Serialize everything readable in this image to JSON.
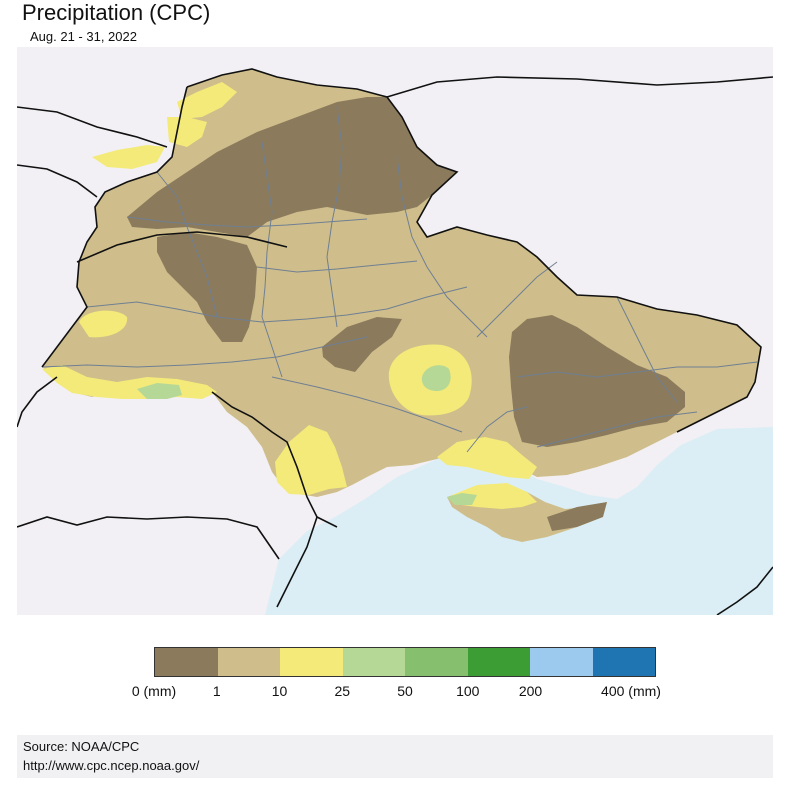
{
  "header": {
    "title": "Precipitation (CPC)",
    "date_range": "Aug. 21 - 31, 2022"
  },
  "colors": {
    "land_outside": "#f2f0f4",
    "sea": "#dbeef5",
    "c0_1": "#8b7b5c",
    "c1_10": "#cfbe8b",
    "c10_25": "#f3ea79",
    "c25_50": "#b5d896",
    "c50_100": "#86c06f",
    "border": "#111111",
    "oblast_border": "#6f7f93"
  },
  "legend": {
    "swatches": [
      {
        "range": "0-1",
        "color": "#8b7b5c"
      },
      {
        "range": "1-10",
        "color": "#cfbe8b"
      },
      {
        "range": "10-25",
        "color": "#f3ea79"
      },
      {
        "range": "25-50",
        "color": "#b5d896"
      },
      {
        "range": "50-100",
        "color": "#86c06f"
      },
      {
        "range": "100-200",
        "color": "#3d9d35"
      },
      {
        "range": "200-400",
        "color": "#9ccaef"
      },
      {
        "range": "400+",
        "color": "#1f74b2"
      }
    ],
    "labels": [
      "0 (mm)",
      "1",
      "10",
      "25",
      "50",
      "100",
      "200",
      "400 (mm)"
    ]
  },
  "footer": {
    "source": "Source: NOAA/CPC",
    "url": "http://www.cpc.ncep.noaa.gov/"
  }
}
